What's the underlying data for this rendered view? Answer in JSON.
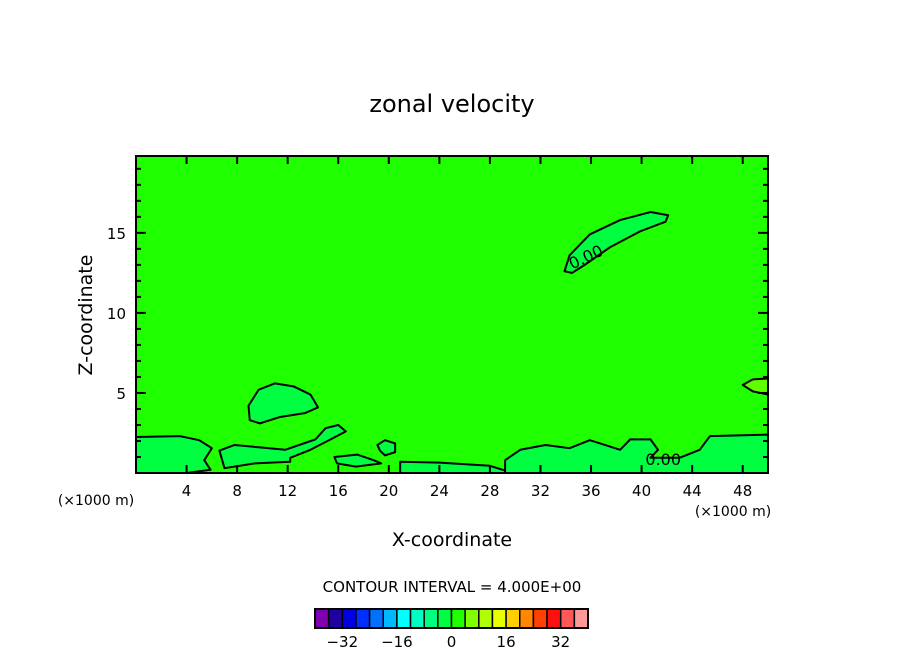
{
  "chart_data": {
    "type": "contour",
    "title": "zonal velocity",
    "xlabel": "X-coordinate",
    "ylabel": "Z-coordinate",
    "x_unit_label": "(×1000 m)",
    "xlim": [
      0,
      50
    ],
    "ylim": [
      0,
      19.8
    ],
    "xticks": [
      4,
      8,
      12,
      16,
      20,
      24,
      28,
      32,
      36,
      40,
      44,
      48
    ],
    "yticks": [
      5,
      10,
      15
    ],
    "background_color": "#20ff00",
    "regions": [
      {
        "name": "upper-zero-contour",
        "color": "#00ff40",
        "points": [
          [
            33.9,
            12.6
          ],
          [
            34.3,
            13.6
          ],
          [
            35.9,
            14.9
          ],
          [
            38.3,
            15.8
          ],
          [
            40.7,
            16.3
          ],
          [
            42.1,
            16.1
          ],
          [
            41.9,
            15.7
          ],
          [
            39.9,
            15.1
          ],
          [
            37.5,
            14.1
          ],
          [
            35.5,
            13.0
          ],
          [
            34.5,
            12.5
          ]
        ]
      },
      {
        "name": "left-blob",
        "color": "#00ff40",
        "points": [
          [
            9.0,
            3.3
          ],
          [
            8.9,
            4.2
          ],
          [
            9.7,
            5.2
          ],
          [
            11.0,
            5.6
          ],
          [
            12.5,
            5.4
          ],
          [
            13.8,
            4.9
          ],
          [
            14.4,
            4.1
          ],
          [
            13.4,
            3.75
          ],
          [
            11.4,
            3.5
          ],
          [
            9.8,
            3.1
          ]
        ]
      },
      {
        "name": "bottom-left",
        "color": "#00ff40",
        "points": [
          [
            0,
            2.25
          ],
          [
            3.5,
            2.3
          ],
          [
            5,
            2.05
          ],
          [
            6,
            1.55
          ],
          [
            5.4,
            0.8
          ],
          [
            5.9,
            0.2
          ],
          [
            4,
            0
          ],
          [
            0,
            0
          ]
        ]
      },
      {
        "name": "middle-band",
        "color": "#00ff40",
        "points": [
          [
            6.6,
            1.4
          ],
          [
            7.8,
            1.75
          ],
          [
            9.8,
            1.6
          ],
          [
            11.8,
            1.45
          ],
          [
            14.2,
            2.1
          ],
          [
            15.0,
            2.8
          ],
          [
            16.0,
            3.0
          ],
          [
            16.6,
            2.6
          ],
          [
            15.4,
            2.1
          ],
          [
            13.8,
            1.45
          ],
          [
            12.2,
            0.95
          ],
          [
            12.2,
            0.7
          ],
          [
            9.4,
            0.6
          ],
          [
            7.0,
            0.3
          ]
        ]
      },
      {
        "name": "small-blob-20",
        "color": "#00ff40",
        "points": [
          [
            19.1,
            1.75
          ],
          [
            19.7,
            2.05
          ],
          [
            20.5,
            1.85
          ],
          [
            20.5,
            1.3
          ],
          [
            19.7,
            1.1
          ],
          [
            19.3,
            1.4
          ]
        ]
      },
      {
        "name": "small-blob-17",
        "color": "#00ff40",
        "points": [
          [
            15.7,
            1.0
          ],
          [
            17.5,
            1.15
          ],
          [
            18.8,
            0.8
          ],
          [
            19.4,
            0.6
          ],
          [
            17.4,
            0.4
          ],
          [
            15.9,
            0.6
          ]
        ]
      },
      {
        "name": "bottom-band-mid",
        "color": "#00ff40",
        "points": [
          [
            20.9,
            0.7
          ],
          [
            24,
            0.65
          ],
          [
            28,
            0.45
          ],
          [
            29.2,
            0.15
          ],
          [
            29.2,
            0
          ],
          [
            20.9,
            0
          ]
        ]
      },
      {
        "name": "bottom-right",
        "color": "#00ff40",
        "points": [
          [
            29.2,
            0.8
          ],
          [
            30.4,
            1.45
          ],
          [
            32.4,
            1.75
          ],
          [
            34.3,
            1.55
          ],
          [
            35.9,
            2.05
          ],
          [
            37.1,
            1.75
          ],
          [
            38.3,
            1.45
          ],
          [
            39.1,
            2.1
          ],
          [
            40.7,
            2.1
          ],
          [
            41.3,
            1.45
          ],
          [
            40.7,
            0.95
          ],
          [
            43,
            0.95
          ],
          [
            44.6,
            1.45
          ],
          [
            45.4,
            2.3
          ],
          [
            50,
            2.4
          ],
          [
            50,
            0
          ],
          [
            29.2,
            0
          ]
        ]
      },
      {
        "name": "right-positive-blob",
        "color": "#60ff00",
        "points": [
          [
            48,
            5.5
          ],
          [
            48.8,
            5.85
          ],
          [
            50,
            5.9
          ],
          [
            50,
            4.9
          ],
          [
            48.8,
            5.1
          ]
        ]
      }
    ],
    "contour_labels": [
      {
        "text": "0.00",
        "x": 34.5,
        "y": 12.7,
        "angle": -25
      },
      {
        "text": "0.00",
        "x": 40.3,
        "y": 0.5,
        "angle": 0
      }
    ],
    "contour_interval_label": "CONTOUR INTERVAL = 4.000E+00",
    "colorbar": {
      "levels_min": -40,
      "levels_max": 40,
      "step": 4,
      "colors": [
        "#8000b0",
        "#2000a0",
        "#0000e0",
        "#0030ff",
        "#0070ff",
        "#00b8ff",
        "#00ffff",
        "#00ffc0",
        "#00ff80",
        "#00ff40",
        "#20ff00",
        "#80ff00",
        "#b0ff00",
        "#e8ff00",
        "#ffd000",
        "#ff8800",
        "#ff4000",
        "#ff1010",
        "#ff5858",
        "#ff9898"
      ],
      "tick_labels": [
        "-32",
        "-16",
        "0",
        "16",
        "32"
      ],
      "tick_values": [
        -32,
        -16,
        0,
        16,
        32
      ]
    }
  }
}
